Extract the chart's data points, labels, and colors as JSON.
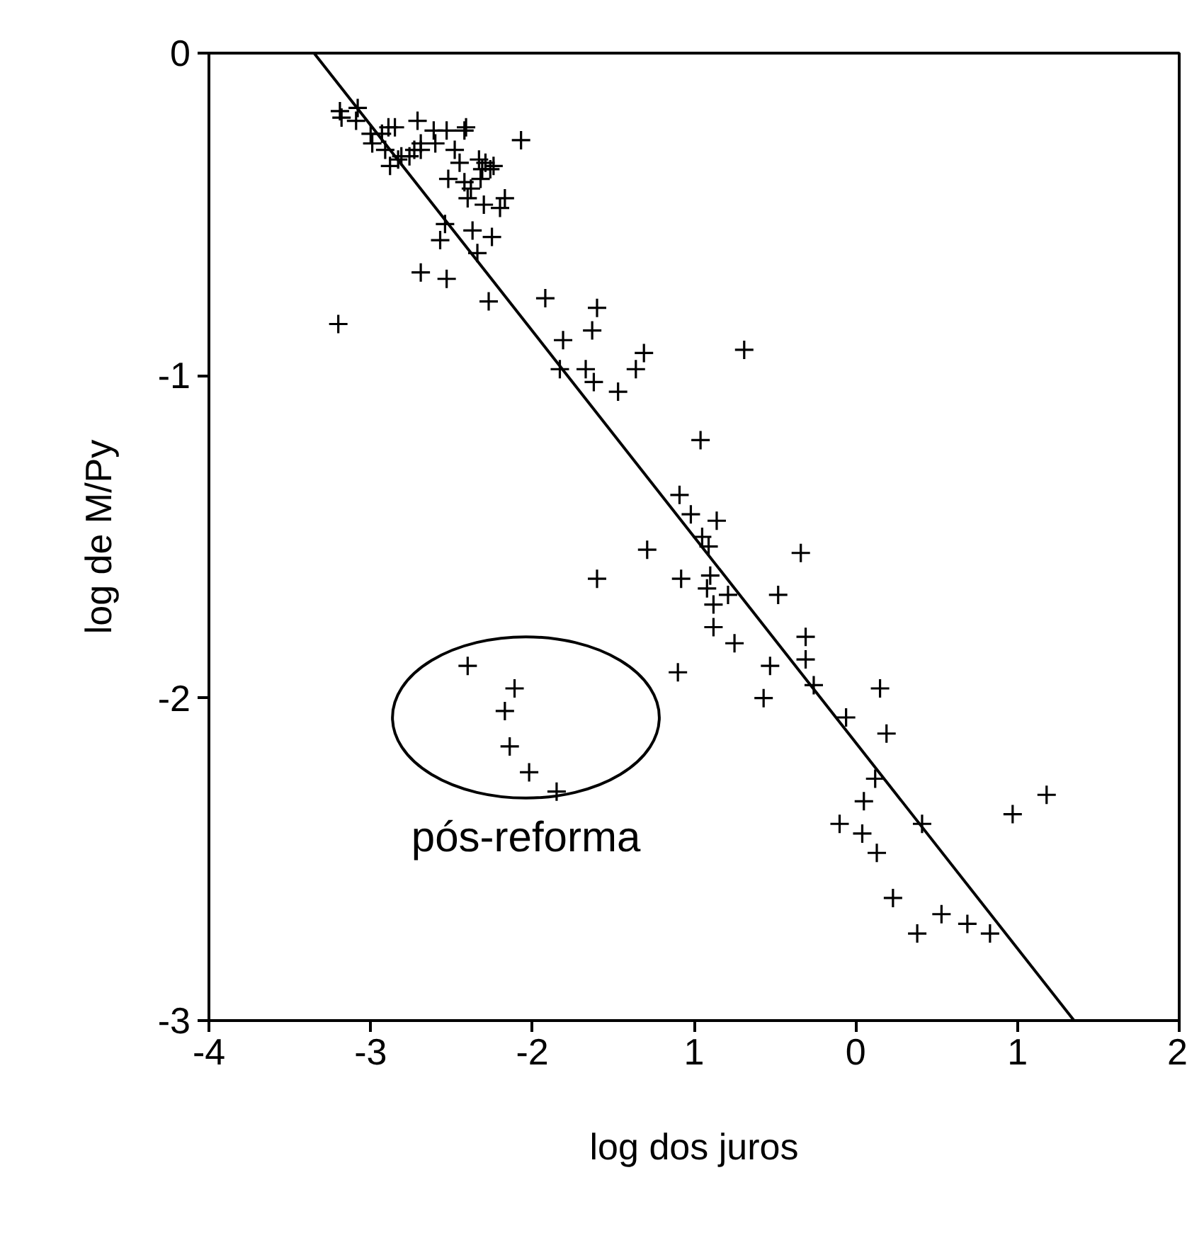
{
  "chart_data": {
    "type": "scatter",
    "xlabel": "log dos juros",
    "ylabel": "log de M/Py",
    "xlim": [
      -4,
      2
    ],
    "ylim": [
      -3,
      0
    ],
    "xticks": [
      -4,
      -3,
      -2,
      {
        "value": -1,
        "label": "1"
      },
      0,
      1,
      2
    ],
    "yticks": [
      0,
      -1,
      -2,
      -3
    ],
    "grid": false,
    "annotations": [
      "pós-reforma"
    ],
    "series": [
      {
        "marker": "cross",
        "color": "#000000",
        "x": [
          -3.19,
          -3.18,
          -3.08,
          -3.09,
          -3.0,
          -2.99,
          -2.93,
          -2.91,
          -2.89,
          -2.88,
          -2.85,
          -2.83,
          -2.81,
          -2.76,
          -2.73,
          -2.71,
          -2.69,
          -2.69,
          -2.61,
          -2.6,
          -2.53,
          -2.48,
          -2.45,
          -2.42,
          -2.41,
          -2.42,
          -2.4,
          -2.38,
          -2.33,
          -2.31,
          -2.29,
          -2.32,
          -2.3,
          -2.26,
          -2.24,
          -2.2,
          -2.17,
          -2.52,
          -2.54,
          -2.57,
          -2.37,
          -2.25,
          -2.34,
          -2.07,
          -2.69,
          -2.53,
          -2.27,
          -3.2,
          -1.92,
          -1.81,
          -1.6,
          -1.63,
          -1.83,
          -1.67,
          -1.62,
          -1.47,
          -1.36,
          -1.31,
          -0.69,
          -0.96,
          -1.09,
          -1.02,
          -0.86,
          -0.95,
          -0.91,
          -1.29,
          -1.6,
          -1.08,
          -0.9,
          -0.92,
          -0.79,
          -0.88,
          -0.88,
          -0.75,
          -0.48,
          -0.34,
          -0.31,
          -0.31,
          -0.53,
          -0.26,
          -0.57,
          -1.1,
          -0.06,
          0.15,
          0.19,
          0.12,
          0.05,
          -0.1,
          0.04,
          0.13,
          0.41,
          0.97,
          1.18,
          0.23,
          0.38,
          0.53,
          0.69,
          0.83,
          -2.4,
          -2.11,
          -2.17,
          -2.14,
          -2.02,
          -1.85
        ],
        "values": [
          -0.18,
          -0.2,
          -0.17,
          -0.21,
          -0.25,
          -0.28,
          -0.25,
          -0.3,
          -0.23,
          -0.35,
          -0.23,
          -0.33,
          -0.32,
          -0.32,
          -0.3,
          -0.21,
          -0.28,
          -0.3,
          -0.24,
          -0.28,
          -0.24,
          -0.3,
          -0.34,
          -0.24,
          -0.23,
          -0.4,
          -0.45,
          -0.42,
          -0.33,
          -0.36,
          -0.34,
          -0.39,
          -0.47,
          -0.36,
          -0.35,
          -0.48,
          -0.45,
          -0.39,
          -0.53,
          -0.58,
          -0.55,
          -0.57,
          -0.62,
          -0.27,
          -0.68,
          -0.7,
          -0.77,
          -0.84,
          -0.76,
          -0.89,
          -0.79,
          -0.86,
          -0.98,
          -0.98,
          -1.02,
          -1.05,
          -0.98,
          -0.93,
          -0.92,
          -1.2,
          -1.37,
          -1.43,
          -1.45,
          -1.5,
          -1.53,
          -1.54,
          -1.63,
          -1.63,
          -1.62,
          -1.66,
          -1.68,
          -1.71,
          -1.78,
          -1.83,
          -1.68,
          -1.55,
          -1.81,
          -1.88,
          -1.9,
          -1.96,
          -2.0,
          -1.92,
          -2.06,
          -1.97,
          -2.11,
          -2.25,
          -2.32,
          -2.39,
          -2.42,
          -2.48,
          -2.39,
          -2.36,
          -2.3,
          -2.62,
          -2.73,
          -2.67,
          -2.7,
          -2.73,
          -1.9,
          -1.97,
          -2.04,
          -2.15,
          -2.23,
          -2.29
        ]
      },
      {
        "type": "line",
        "color": "#000000",
        "x": [
          -3.35,
          1.35
        ],
        "values": [
          0,
          -3
        ]
      }
    ]
  }
}
